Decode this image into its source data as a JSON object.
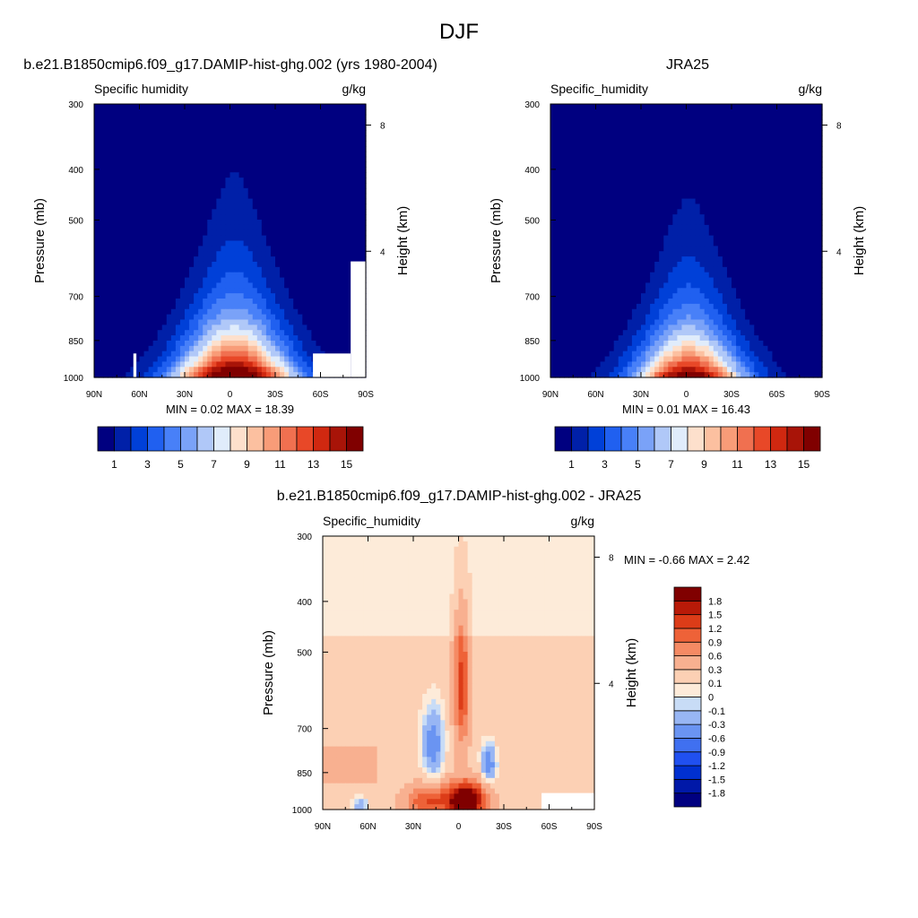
{
  "figure": {
    "title": "DJF"
  },
  "colors": {
    "abs_palette": [
      "#000080",
      "#0020a8",
      "#0040d8",
      "#2060f0",
      "#4880f8",
      "#7aa2f8",
      "#b0c8f8",
      "#e0ecfb",
      "#fde0cc",
      "#fcc0a0",
      "#f89c78",
      "#f07050",
      "#e84828",
      "#d02810",
      "#a81408",
      "#800000"
    ],
    "diff_palette": [
      "#000080",
      "#0018a8",
      "#0030d0",
      "#2050f0",
      "#4070f0",
      "#6a94f2",
      "#98b6f4",
      "#c8dcf6",
      "#fdebd9",
      "#fcd0b4",
      "#f8b090",
      "#f58a64",
      "#ee6238",
      "#dc3c18",
      "#b81a08",
      "#800000"
    ]
  },
  "chart_data": [
    {
      "type": "heatmap",
      "id": "model",
      "title": "b.e21.B1850cmip6.f09_g17.DAMIP-hist-ghg.002 (yrs 1980-2004)",
      "left_label": "Specific humidity",
      "right_label": "g/kg",
      "xlabel": "",
      "ylabel": "Pressure (mb)",
      "ylabel_right": "Height (km)",
      "x_ticks": [
        "90N",
        "60N",
        "30N",
        "0",
        "30S",
        "60S",
        "90S"
      ],
      "x_tick_values": [
        90,
        60,
        30,
        0,
        -30,
        -60,
        -90
      ],
      "xlim": [
        90,
        -90
      ],
      "y_ticks": [
        "300",
        "400",
        "500",
        "700",
        "850",
        "1000"
      ],
      "y_tick_values": [
        300,
        400,
        500,
        700,
        850,
        1000
      ],
      "ylim": [
        1000,
        300
      ],
      "y_scale": "log",
      "height_ticks": [
        "8",
        "4"
      ],
      "height_tick_values": [
        8,
        4
      ],
      "stats": {
        "min_label": "MIN =",
        "min": "0.02",
        "max_label": "MAX =",
        "max": "18.39"
      },
      "stats_text": "MIN =   0.02  MAX =  18.39",
      "colorbar": {
        "orientation": "horizontal",
        "levels": [
          1,
          2,
          3,
          4,
          5,
          6,
          7,
          8,
          9,
          10,
          11,
          12,
          13,
          14,
          15
        ],
        "tick_labels": [
          "1",
          "3",
          "5",
          "7",
          "9",
          "11",
          "13",
          "15"
        ]
      },
      "peak": {
        "lat": -3,
        "value": 18.39,
        "half_width_lat": 48,
        "scale_height_mb": 200
      },
      "masked_regions": [
        {
          "lat_range": [
            -55,
            -80
          ],
          "p_range": [
            900,
            1000
          ]
        },
        {
          "lat_range": [
            -80,
            -90
          ],
          "p_range": [
            600,
            1000
          ]
        },
        {
          "lat_range": [
            64,
            62
          ],
          "p_range": [
            900,
            1000
          ]
        }
      ]
    },
    {
      "type": "heatmap",
      "id": "obs",
      "title": "JRA25",
      "left_label": "Specific_humidity",
      "right_label": "g/kg",
      "xlabel": "",
      "ylabel": "Pressure (mb)",
      "ylabel_right": "Height (km)",
      "x_ticks": [
        "90N",
        "60N",
        "30N",
        "0",
        "30S",
        "60S",
        "90S"
      ],
      "x_tick_values": [
        90,
        60,
        30,
        0,
        -30,
        -60,
        -90
      ],
      "xlim": [
        90,
        -90
      ],
      "y_ticks": [
        "300",
        "400",
        "500",
        "700",
        "850",
        "1000"
      ],
      "y_tick_values": [
        300,
        400,
        500,
        700,
        850,
        1000
      ],
      "ylim": [
        1000,
        300
      ],
      "y_scale": "log",
      "height_ticks": [
        "8",
        "4"
      ],
      "height_tick_values": [
        8,
        4
      ],
      "stats": {
        "min_label": "MIN =",
        "min": "0.01",
        "max_label": "MAX =",
        "max": "16.43"
      },
      "stats_text": "MIN =   0.01  MAX =  16.43",
      "colorbar": {
        "orientation": "horizontal",
        "levels": [
          1,
          2,
          3,
          4,
          5,
          6,
          7,
          8,
          9,
          10,
          11,
          12,
          13,
          14,
          15
        ],
        "tick_labels": [
          "1",
          "3",
          "5",
          "7",
          "9",
          "11",
          "13",
          "15"
        ]
      },
      "peak": {
        "lat": -2,
        "value": 16.43,
        "half_width_lat": 44,
        "scale_height_mb": 190
      },
      "masked_regions": []
    },
    {
      "type": "heatmap",
      "id": "diff",
      "title": "b.e21.B1850cmip6.f09_g17.DAMIP-hist-ghg.002 - JRA25",
      "left_label": "Specific_humidity",
      "right_label": "g/kg",
      "xlabel": "",
      "ylabel": "Pressure (mb)",
      "ylabel_right": "Height (km)",
      "x_ticks": [
        "90N",
        "60N",
        "30N",
        "0",
        "30S",
        "60S",
        "90S"
      ],
      "x_tick_values": [
        90,
        60,
        30,
        0,
        -30,
        -60,
        -90
      ],
      "xlim": [
        90,
        -90
      ],
      "y_ticks": [
        "300",
        "400",
        "500",
        "700",
        "850",
        "1000"
      ],
      "y_tick_values": [
        300,
        400,
        500,
        700,
        850,
        1000
      ],
      "ylim": [
        1000,
        300
      ],
      "y_scale": "log",
      "height_ticks": [
        "8",
        "4"
      ],
      "height_tick_values": [
        8,
        4
      ],
      "stats": {
        "min_label": "MIN =",
        "min": "-0.66",
        "max_label": "MAX =",
        "max": "2.42"
      },
      "stats_text": "MIN =  -0.66  MAX =   2.42",
      "colorbar": {
        "orientation": "vertical",
        "levels": [
          -1.8,
          -1.5,
          -1.2,
          -0.9,
          -0.6,
          -0.3,
          -0.1,
          0,
          0.1,
          0.3,
          0.6,
          0.9,
          1.2,
          1.5,
          1.8
        ],
        "tick_labels": [
          "-1.8",
          "-1.5",
          "-1.2",
          "-0.9",
          "-0.6",
          "-0.3",
          "-0.1",
          "0",
          "0.1",
          "0.3",
          "0.6",
          "0.9",
          "1.2",
          "1.5",
          "1.8"
        ]
      },
      "features": [
        {
          "lat": -2,
          "p": 580,
          "value": 1.2,
          "half_width_lat": 5,
          "half_depth_mb": 160
        },
        {
          "lat": -5,
          "p": 960,
          "value": 2.42,
          "half_width_lat": 12,
          "half_depth_mb": 70
        },
        {
          "lat": 20,
          "p": 960,
          "value": 1.0,
          "half_width_lat": 14,
          "half_depth_mb": 60
        },
        {
          "lat": 17,
          "p": 750,
          "value": -0.66,
          "half_width_lat": 7,
          "half_depth_mb": 110
        },
        {
          "lat": -20,
          "p": 820,
          "value": -0.66,
          "half_width_lat": 5,
          "half_depth_mb": 70
        },
        {
          "lat": 65,
          "p": 980,
          "value": -0.4,
          "half_width_lat": 5,
          "half_depth_mb": 30
        }
      ],
      "masked_regions": [
        {
          "lat_range": [
            -55,
            -90
          ],
          "p_range": [
            930,
            1000
          ]
        }
      ]
    }
  ]
}
